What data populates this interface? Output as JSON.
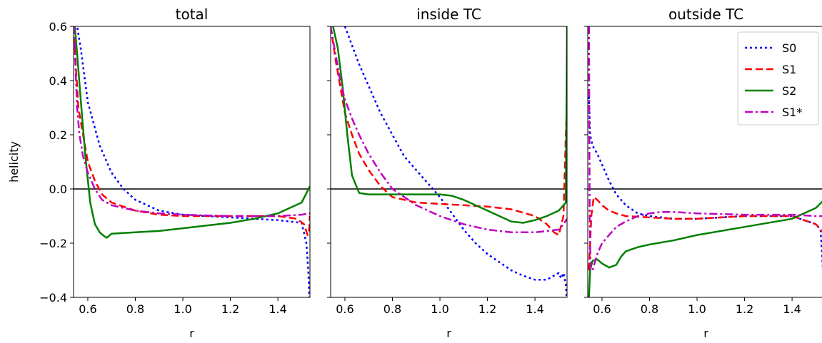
{
  "chart_data": [
    {
      "type": "line",
      "title": "total",
      "xlabel": "r",
      "ylabel": "helicity",
      "xlim": [
        0.54,
        1.535
      ],
      "ylim": [
        -0.4,
        0.6
      ],
      "xticks": [
        "0.6",
        "0.8",
        "1.0",
        "1.2",
        "1.4"
      ],
      "yticks": [
        "−0.4",
        "−0.2",
        "0.0",
        "0.2",
        "0.4",
        "0.6"
      ],
      "hline": 0.0,
      "series": [
        {
          "name": "S0",
          "color": "#0000ff",
          "style": "dotted",
          "x": [
            0.54,
            0.555,
            0.57,
            0.6,
            0.65,
            0.7,
            0.75,
            0.8,
            0.9,
            1.0,
            1.1,
            1.2,
            1.3,
            1.4,
            1.45,
            1.5,
            1.52,
            1.528,
            1.532
          ],
          "y": [
            0.6,
            0.6,
            0.52,
            0.32,
            0.16,
            0.06,
            0.0,
            -0.04,
            -0.08,
            -0.095,
            -0.1,
            -0.105,
            -0.11,
            -0.115,
            -0.12,
            -0.125,
            -0.2,
            -0.3,
            -0.4
          ]
        },
        {
          "name": "S1",
          "color": "#ff0000",
          "style": "dashed",
          "x": [
            0.54,
            0.55,
            0.56,
            0.58,
            0.6,
            0.63,
            0.66,
            0.7,
            0.8,
            0.9,
            1.0,
            1.2,
            1.4,
            1.48,
            1.51,
            1.525,
            1.532,
            1.534
          ],
          "y": [
            0.6,
            0.45,
            0.3,
            0.2,
            0.1,
            0.03,
            -0.02,
            -0.05,
            -0.08,
            -0.095,
            -0.1,
            -0.1,
            -0.1,
            -0.11,
            -0.13,
            -0.17,
            -0.15,
            -0.1
          ]
        },
        {
          "name": "S2",
          "color": "#008000",
          "style": "solid",
          "x": [
            0.545,
            0.555,
            0.57,
            0.59,
            0.61,
            0.63,
            0.65,
            0.67,
            0.68,
            0.7,
            0.8,
            0.9,
            1.0,
            1.1,
            1.2,
            1.3,
            1.4,
            1.45,
            1.5,
            1.535
          ],
          "y": [
            0.6,
            0.5,
            0.33,
            0.12,
            -0.05,
            -0.13,
            -0.16,
            -0.175,
            -0.18,
            -0.165,
            -0.16,
            -0.155,
            -0.145,
            -0.135,
            -0.125,
            -0.11,
            -0.09,
            -0.07,
            -0.05,
            0.01
          ]
        },
        {
          "name": "S1*",
          "color": "#bf00bf",
          "style": "dashdot",
          "x": [
            0.542,
            0.548,
            0.555,
            0.565,
            0.58,
            0.6,
            0.63,
            0.66,
            0.7,
            0.8,
            0.9,
            1.0,
            1.2,
            1.4,
            1.5,
            1.53,
            1.535
          ],
          "y": [
            0.6,
            0.45,
            0.3,
            0.2,
            0.12,
            0.06,
            0.0,
            -0.04,
            -0.06,
            -0.08,
            -0.09,
            -0.095,
            -0.1,
            -0.1,
            -0.095,
            -0.09,
            -0.09
          ]
        }
      ]
    },
    {
      "type": "line",
      "title": "inside TC",
      "xlabel": "r",
      "xlim": [
        0.54,
        1.535
      ],
      "ylim": [
        -0.4,
        0.6
      ],
      "xticks": [
        "0.6",
        "0.8",
        "1.0",
        "1.2",
        "1.4"
      ],
      "hline": 0.0,
      "series": [
        {
          "name": "S0",
          "color": "#0000ff",
          "style": "dotted",
          "x": [
            0.6,
            0.63,
            0.66,
            0.7,
            0.75,
            0.8,
            0.85,
            0.9,
            0.95,
            1.0,
            1.05,
            1.1,
            1.15,
            1.2,
            1.25,
            1.3,
            1.35,
            1.4,
            1.45,
            1.48,
            1.5,
            1.51,
            1.52,
            1.53,
            1.533
          ],
          "y": [
            0.6,
            0.53,
            0.46,
            0.38,
            0.28,
            0.2,
            0.12,
            0.07,
            0.02,
            -0.03,
            -0.09,
            -0.15,
            -0.2,
            -0.24,
            -0.27,
            -0.3,
            -0.32,
            -0.335,
            -0.335,
            -0.32,
            -0.31,
            -0.33,
            -0.31,
            -0.35,
            -0.4
          ]
        },
        {
          "name": "S1",
          "color": "#ff0000",
          "style": "dashed",
          "x": [
            0.54,
            0.56,
            0.58,
            0.6,
            0.63,
            0.66,
            0.7,
            0.75,
            0.8,
            0.9,
            1.0,
            1.1,
            1.2,
            1.3,
            1.4,
            1.45,
            1.48,
            1.5,
            1.52,
            1.53,
            1.535
          ],
          "y": [
            0.6,
            0.48,
            0.38,
            0.28,
            0.2,
            0.13,
            0.07,
            0.01,
            -0.03,
            -0.05,
            -0.055,
            -0.06,
            -0.065,
            -0.075,
            -0.1,
            -0.13,
            -0.16,
            -0.17,
            -0.1,
            0.2,
            0.32
          ]
        },
        {
          "name": "S2",
          "color": "#008000",
          "style": "solid",
          "x": [
            0.55,
            0.57,
            0.59,
            0.61,
            0.63,
            0.66,
            0.7,
            0.8,
            0.9,
            1.0,
            1.05,
            1.1,
            1.2,
            1.3,
            1.35,
            1.4,
            1.45,
            1.5,
            1.53,
            1.535
          ],
          "y": [
            0.6,
            0.52,
            0.38,
            0.2,
            0.05,
            -0.015,
            -0.02,
            -0.02,
            -0.02,
            -0.02,
            -0.025,
            -0.04,
            -0.08,
            -0.12,
            -0.125,
            -0.115,
            -0.1,
            -0.08,
            -0.05,
            0.6
          ]
        },
        {
          "name": "S1*",
          "color": "#bf00bf",
          "style": "dashdot",
          "x": [
            0.54,
            0.56,
            0.58,
            0.6,
            0.63,
            0.66,
            0.7,
            0.75,
            0.8,
            0.9,
            1.0,
            1.1,
            1.2,
            1.3,
            1.4,
            1.45,
            1.5,
            1.52,
            1.535
          ],
          "y": [
            0.6,
            0.5,
            0.4,
            0.33,
            0.26,
            0.2,
            0.13,
            0.06,
            0.0,
            -0.06,
            -0.1,
            -0.13,
            -0.15,
            -0.16,
            -0.16,
            -0.155,
            -0.15,
            -0.13,
            -0.11
          ]
        }
      ]
    },
    {
      "type": "line",
      "title": "outside TC",
      "xlabel": "r",
      "xlim": [
        0.54,
        1.535
      ],
      "ylim": [
        -0.4,
        0.6
      ],
      "xticks": [
        "0.6",
        "0.8",
        "1.0",
        "1.2",
        "1.4"
      ],
      "hline": 0.0,
      "legend": {
        "loc": "upper right",
        "entries": [
          "S0",
          "S1",
          "S2",
          "S1*"
        ]
      },
      "series": [
        {
          "name": "S0",
          "color": "#0000ff",
          "style": "dotted",
          "x": [
            0.545,
            0.55,
            0.56,
            0.58,
            0.6,
            0.63,
            0.66,
            0.7,
            0.75,
            0.8,
            0.9,
            1.0,
            1.2,
            1.4,
            1.5,
            1.52,
            1.53,
            1.533
          ],
          "y": [
            0.34,
            0.2,
            0.16,
            0.13,
            0.09,
            0.03,
            -0.02,
            -0.06,
            -0.09,
            -0.1,
            -0.11,
            -0.11,
            -0.1,
            -0.1,
            -0.13,
            -0.15,
            -0.3,
            -0.4
          ]
        },
        {
          "name": "S1",
          "color": "#ff0000",
          "style": "dashed",
          "x": [
            0.545,
            0.555,
            0.565,
            0.58,
            0.6,
            0.63,
            0.66,
            0.7,
            0.8,
            0.9,
            1.0,
            1.2,
            1.4,
            1.5,
            1.53,
            1.535
          ],
          "y": [
            -0.3,
            -0.1,
            -0.03,
            -0.04,
            -0.06,
            -0.08,
            -0.09,
            -0.1,
            -0.105,
            -0.11,
            -0.11,
            -0.1,
            -0.1,
            -0.13,
            -0.16,
            -0.17
          ]
        },
        {
          "name": "S2",
          "color": "#008000",
          "style": "solid",
          "x": [
            0.545,
            0.55,
            0.56,
            0.58,
            0.6,
            0.63,
            0.66,
            0.68,
            0.7,
            0.75,
            0.8,
            0.9,
            1.0,
            1.2,
            1.4,
            1.5,
            1.535
          ],
          "y": [
            -0.4,
            -0.3,
            -0.265,
            -0.26,
            -0.275,
            -0.29,
            -0.28,
            -0.25,
            -0.23,
            -0.215,
            -0.205,
            -0.19,
            -0.17,
            -0.14,
            -0.11,
            -0.07,
            -0.04
          ]
        },
        {
          "name": "S1*",
          "color": "#bf00bf",
          "style": "dashdot",
          "x": [
            0.545,
            0.548,
            0.552,
            0.56,
            0.58,
            0.6,
            0.63,
            0.66,
            0.7,
            0.75,
            0.8,
            0.85,
            0.9,
            1.0,
            1.2,
            1.4,
            1.5,
            1.535
          ],
          "y": [
            0.6,
            -0.1,
            -0.3,
            -0.3,
            -0.24,
            -0.2,
            -0.17,
            -0.14,
            -0.12,
            -0.1,
            -0.09,
            -0.085,
            -0.085,
            -0.09,
            -0.095,
            -0.095,
            -0.1,
            -0.1
          ]
        }
      ]
    }
  ]
}
